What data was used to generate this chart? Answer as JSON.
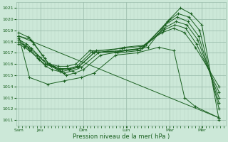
{
  "bg_color": "#cce8d8",
  "grid_color_major": "#9dbfae",
  "grid_color_minor": "#b8d4c4",
  "line_color": "#1a6020",
  "xlabel": "Pression niveau de la mer( hPa )",
  "ylim": [
    1010.5,
    1021.5
  ],
  "yticks": [
    1011,
    1012,
    1013,
    1014,
    1015,
    1016,
    1017,
    1018,
    1019,
    1020,
    1021
  ],
  "x_day_labels": [
    "Sam",
    "Jeu",
    "Dim",
    "Lun",
    "Mar",
    "Mer"
  ],
  "x_day_positions": [
    0.0,
    1.0,
    3.0,
    5.0,
    7.0,
    8.5
  ],
  "xlim": [
    -0.1,
    9.6
  ],
  "lines": [
    {
      "x": [
        0.0,
        0.55,
        0.7,
        1.2,
        1.5,
        1.8,
        2.2,
        2.6,
        3.0,
        3.8,
        5.0,
        6.0,
        7.0,
        7.5,
        8.0,
        8.5,
        9.3
      ],
      "y": [
        1018.5,
        1018.2,
        1017.8,
        1016.5,
        1015.8,
        1015.5,
        1015.0,
        1015.2,
        1015.5,
        1016.8,
        1017.2,
        1017.5,
        1020.0,
        1021.0,
        1020.5,
        1019.5,
        1011.0
      ]
    },
    {
      "x": [
        0.0,
        0.45,
        0.65,
        1.1,
        1.4,
        1.7,
        2.1,
        2.5,
        2.9,
        3.7,
        4.9,
        5.9,
        6.9,
        7.4,
        7.9,
        8.4,
        9.3
      ],
      "y": [
        1018.8,
        1018.4,
        1018.0,
        1016.8,
        1016.0,
        1015.7,
        1015.2,
        1015.4,
        1015.7,
        1017.0,
        1017.5,
        1017.7,
        1019.8,
        1020.5,
        1020.2,
        1019.0,
        1012.0
      ]
    },
    {
      "x": [
        0.0,
        0.35,
        0.6,
        1.0,
        1.3,
        1.6,
        2.0,
        2.4,
        2.8,
        3.6,
        4.8,
        5.8,
        6.8,
        7.35,
        7.85,
        8.35,
        9.3
      ],
      "y": [
        1018.2,
        1017.8,
        1017.4,
        1016.6,
        1016.0,
        1015.8,
        1015.5,
        1015.6,
        1015.8,
        1017.2,
        1017.4,
        1017.6,
        1019.5,
        1020.2,
        1019.8,
        1018.5,
        1012.5
      ]
    },
    {
      "x": [
        0.0,
        0.3,
        0.55,
        0.95,
        1.25,
        1.55,
        1.95,
        2.35,
        2.75,
        3.5,
        4.7,
        5.7,
        6.75,
        7.3,
        7.8,
        8.3,
        9.3
      ],
      "y": [
        1018.0,
        1017.6,
        1017.2,
        1016.4,
        1015.8,
        1015.5,
        1015.3,
        1015.5,
        1015.7,
        1017.0,
        1017.2,
        1017.4,
        1019.2,
        1019.8,
        1019.5,
        1018.2,
        1013.0
      ]
    },
    {
      "x": [
        0.0,
        0.25,
        0.5,
        0.9,
        1.2,
        1.5,
        1.9,
        2.3,
        2.7,
        3.4,
        4.6,
        5.6,
        6.7,
        7.25,
        7.75,
        8.25,
        9.3
      ],
      "y": [
        1017.8,
        1017.5,
        1017.2,
        1016.5,
        1016.0,
        1015.8,
        1015.6,
        1015.6,
        1015.8,
        1017.1,
        1017.0,
        1017.2,
        1019.0,
        1019.5,
        1019.2,
        1017.8,
        1013.5
      ]
    },
    {
      "x": [
        0.0,
        0.2,
        0.45,
        0.85,
        1.15,
        1.45,
        1.85,
        2.25,
        2.65,
        3.3,
        4.5,
        5.5,
        6.65,
        7.2,
        7.7,
        8.2,
        9.3
      ],
      "y": [
        1018.3,
        1017.8,
        1017.5,
        1016.8,
        1016.3,
        1016.0,
        1015.8,
        1015.8,
        1016.0,
        1017.2,
        1017.1,
        1017.3,
        1018.8,
        1019.2,
        1018.8,
        1017.5,
        1014.0
      ]
    },
    {
      "x": [
        0.0,
        0.5,
        1.35,
        2.1,
        2.9,
        3.5,
        4.5,
        5.5,
        6.5,
        7.2,
        7.7,
        8.2,
        9.3
      ],
      "y": [
        1018.5,
        1014.8,
        1014.2,
        1014.5,
        1014.8,
        1015.2,
        1016.8,
        1017.0,
        1017.5,
        1017.2,
        1013.0,
        1012.2,
        1011.2
      ]
    },
    {
      "x": [
        0.0,
        9.3
      ],
      "y": [
        1018.5,
        1011.2
      ]
    }
  ]
}
